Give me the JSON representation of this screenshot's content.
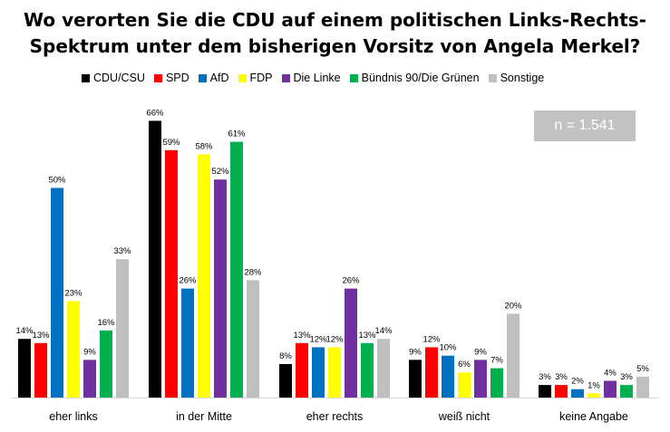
{
  "title_line1": "Wo verorten Sie die CDU auf einem politischen Links-Rechts-",
  "title_line2": "Spektrum unter dem bisherigen Vorsitz von Angela Merkel?",
  "n_label": "n = 1.541",
  "chart_data": {
    "type": "bar",
    "title": "Wo verorten Sie die CDU auf einem politischen Links-Rechts-Spektrum unter dem bisherigen Vorsitz von Angela Merkel?",
    "categories": [
      "eher links",
      "in der Mitte",
      "eher rechts",
      "weiß nicht",
      "keine Angabe"
    ],
    "ylim": [
      0,
      70
    ],
    "grid": false,
    "legend_position": "top",
    "value_suffix": "%",
    "series": [
      {
        "name": "CDU/CSU",
        "color": "#000000",
        "values": [
          14,
          66,
          8,
          9,
          3
        ]
      },
      {
        "name": "SPD",
        "color": "#ff0000",
        "values": [
          13,
          59,
          13,
          12,
          3
        ]
      },
      {
        "name": "AfD",
        "color": "#0070c0",
        "values": [
          50,
          26,
          12,
          10,
          2
        ]
      },
      {
        "name": "FDP",
        "color": "#ffff00",
        "values": [
          23,
          58,
          12,
          6,
          1
        ]
      },
      {
        "name": "Die Linke",
        "color": "#7030a0",
        "values": [
          9,
          52,
          26,
          9,
          4
        ]
      },
      {
        "name": "Bündnis 90/Die Grünen",
        "color": "#00b050",
        "values": [
          16,
          61,
          13,
          7,
          3
        ]
      },
      {
        "name": "Sonstige",
        "color": "#bfbfbf",
        "values": [
          33,
          28,
          14,
          20,
          5
        ]
      }
    ]
  }
}
